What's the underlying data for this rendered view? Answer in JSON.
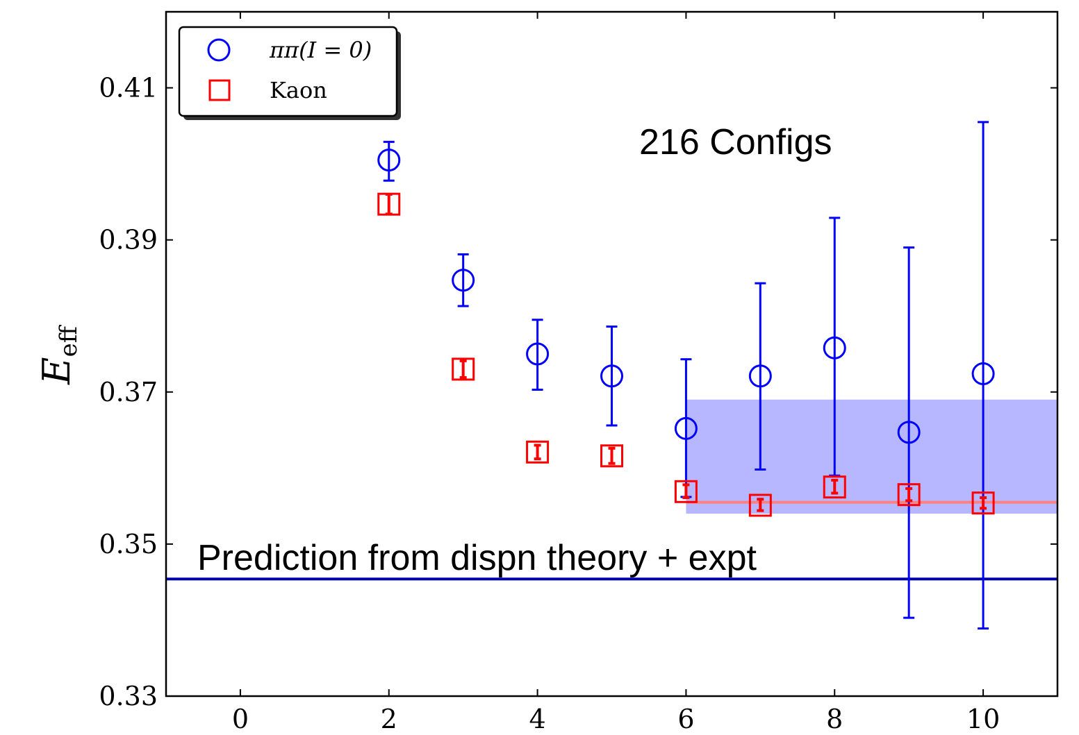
{
  "chart_data": {
    "type": "scatter",
    "xlim": [
      -1,
      11
    ],
    "ylim": [
      0.33,
      0.42
    ],
    "xticks": [
      0,
      2,
      4,
      6,
      8,
      10
    ],
    "yticks": [
      0.33,
      0.35,
      0.37,
      0.39,
      0.41
    ],
    "xtick_labels": [
      "0",
      "2",
      "4",
      "6",
      "8",
      "10"
    ],
    "ytick_labels": [
      "0.33",
      "0.35",
      "0.37",
      "0.39",
      "0.41"
    ],
    "ylabel_main": "E",
    "ylabel_sub": "eff",
    "xlabel": "",
    "grid": false,
    "legend_placement": "top-left",
    "series": [
      {
        "name": "ππ(I = 0)",
        "marker": "circle",
        "color": "#0000ff",
        "points": [
          {
            "x": 2,
            "y": 0.4005,
            "err_lo": 0.3978,
            "err_hi": 0.4029
          },
          {
            "x": 3,
            "y": 0.3847,
            "err_lo": 0.3813,
            "err_hi": 0.3881
          },
          {
            "x": 4,
            "y": 0.375,
            "err_lo": 0.3703,
            "err_hi": 0.3795
          },
          {
            "x": 5,
            "y": 0.3721,
            "err_lo": 0.3656,
            "err_hi": 0.3786
          },
          {
            "x": 6,
            "y": 0.3652,
            "err_lo": 0.3562,
            "err_hi": 0.3743
          },
          {
            "x": 7,
            "y": 0.3721,
            "err_lo": 0.3598,
            "err_hi": 0.3843
          },
          {
            "x": 8,
            "y": 0.3758,
            "err_lo": 0.359,
            "err_hi": 0.3929
          },
          {
            "x": 9,
            "y": 0.3647,
            "err_lo": 0.3403,
            "err_hi": 0.389
          },
          {
            "x": 10,
            "y": 0.3724,
            "err_lo": 0.3389,
            "err_hi": 0.4055
          }
        ]
      },
      {
        "name": "Kaon",
        "marker": "square",
        "color": "#ff0000",
        "points": [
          {
            "x": 2,
            "y": 0.3947,
            "err_lo": 0.3934,
            "err_hi": 0.396
          },
          {
            "x": 3,
            "y": 0.373,
            "err_lo": 0.3719,
            "err_hi": 0.3741
          },
          {
            "x": 4,
            "y": 0.3621,
            "err_lo": 0.3612,
            "err_hi": 0.363
          },
          {
            "x": 5,
            "y": 0.3616,
            "err_lo": 0.3606,
            "err_hi": 0.3626
          },
          {
            "x": 6,
            "y": 0.3569,
            "err_lo": 0.3561,
            "err_hi": 0.3578
          },
          {
            "x": 7,
            "y": 0.3551,
            "err_lo": 0.3544,
            "err_hi": 0.3559
          },
          {
            "x": 8,
            "y": 0.3575,
            "err_lo": 0.3567,
            "err_hi": 0.3584
          },
          {
            "x": 9,
            "y": 0.3565,
            "err_lo": 0.3557,
            "err_hi": 0.3573
          },
          {
            "x": 10,
            "y": 0.3554,
            "err_lo": 0.3547,
            "err_hi": 0.3561
          }
        ]
      }
    ],
    "fit_band": {
      "x_from": 6,
      "x_to": 11,
      "y_lo": 0.354,
      "y_hi": 0.369,
      "color": "#aaaaff"
    },
    "fit_line": {
      "x_from": 6,
      "x_to": 11,
      "y": 0.3555,
      "color": "#ff8080"
    },
    "prediction_line": {
      "y": 0.3454,
      "color": "#0000aa"
    },
    "annotations": {
      "configs": "216 Configs",
      "prediction": "Prediction from dispn theory + expt"
    }
  }
}
